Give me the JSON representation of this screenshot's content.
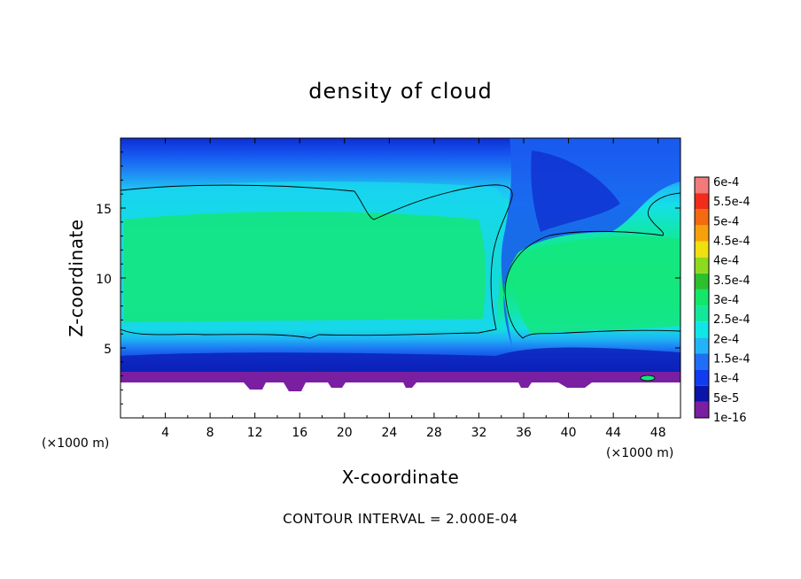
{
  "chart_data": {
    "type": "heatmap",
    "title": "density of cloud",
    "xlabel": "X-coordinate",
    "ylabel": "Z-coordinate",
    "x_unit": "(×1000 m)",
    "y_unit": "(×1000 m)",
    "footer": "CONTOUR INTERVAL = 2.000E-04",
    "xlim": [
      0,
      50
    ],
    "ylim": [
      0,
      20
    ],
    "x_ticks": [
      4,
      8,
      12,
      16,
      20,
      24,
      28,
      32,
      36,
      40,
      44,
      48
    ],
    "y_ticks": [
      5,
      10,
      15
    ],
    "colorbar": {
      "labels": [
        "1e-16",
        "5e-5",
        "1e-4",
        "1.5e-4",
        "2e-4",
        "2.5e-4",
        "3e-4",
        "3.5e-4",
        "4e-4",
        "4.5e-4",
        "5e-4",
        "5.5e-4",
        "6e-4"
      ],
      "colors": [
        "#7a1fa2",
        "#0a14a8",
        "#0f3cf0",
        "#1f6ef5",
        "#23b4f7",
        "#10e6e6",
        "#12e89a",
        "#14e66a",
        "#2cc12c",
        "#8fd91f",
        "#f0e010",
        "#f6a10c",
        "#f46a10",
        "#f22c1a",
        "#f27a7a"
      ]
    },
    "contour_level": 0.0002
  }
}
